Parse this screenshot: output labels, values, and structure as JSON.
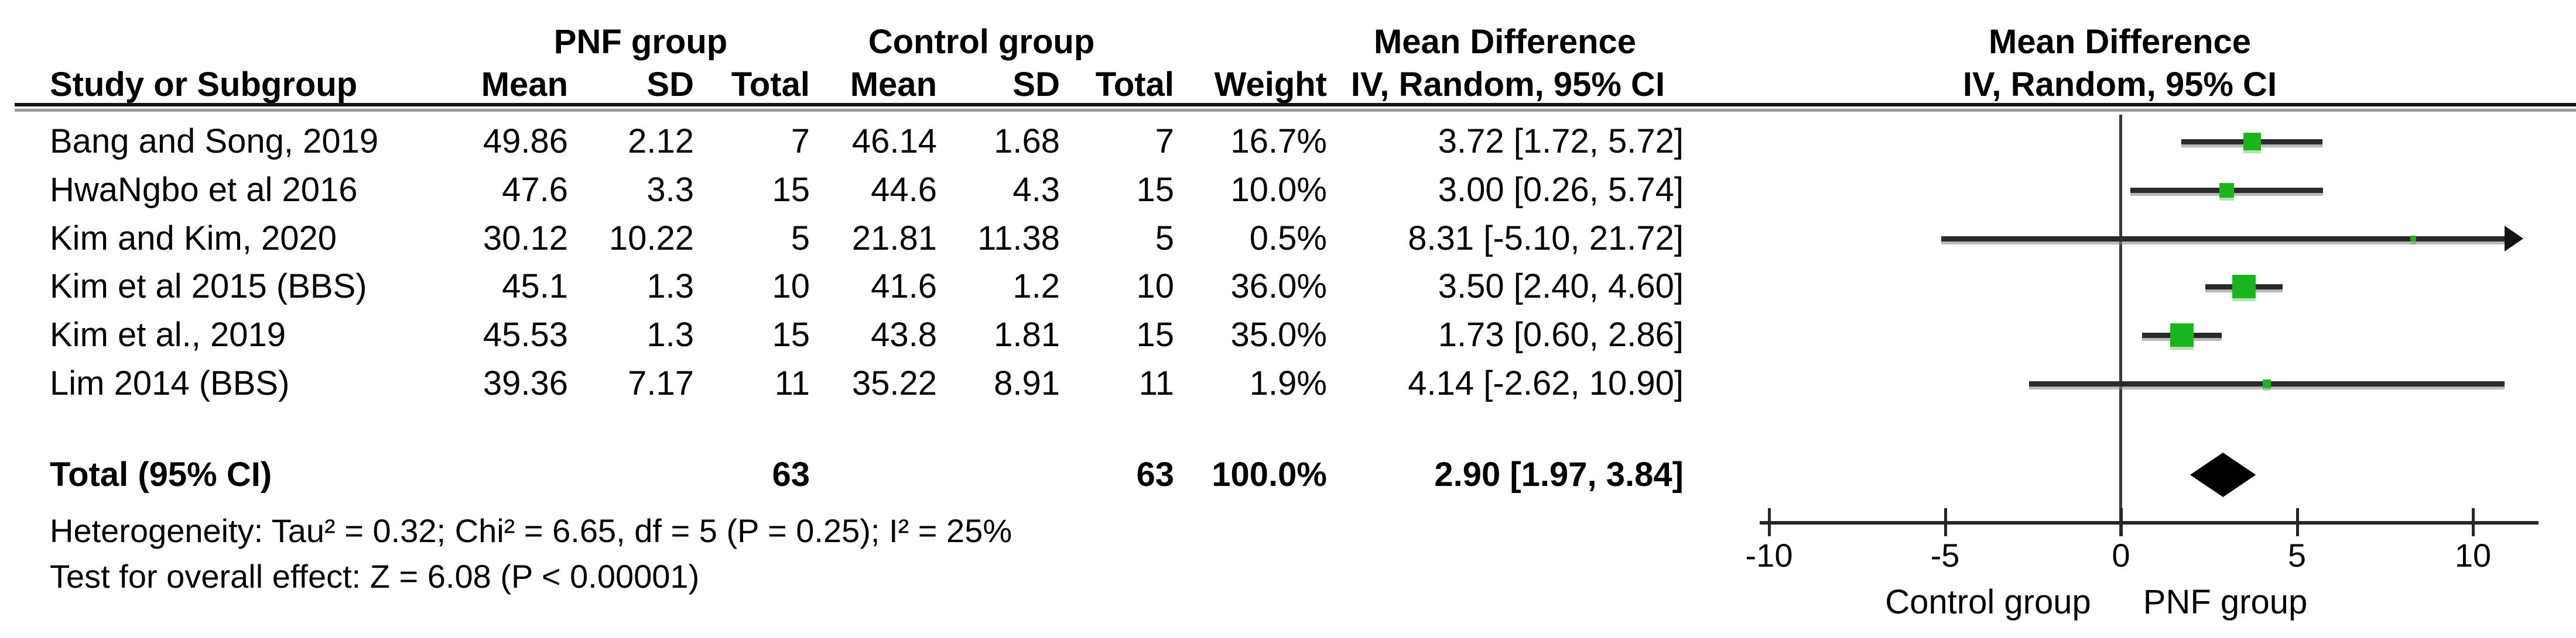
{
  "headers": {
    "group_pnf": "PNF group",
    "group_control": "Control group",
    "md_text_col": "Mean Difference",
    "md_plot_col": "Mean Difference",
    "study": "Study or Subgroup",
    "mean": "Mean",
    "sd": "SD",
    "total": "Total",
    "mean2": "Mean",
    "sd2": "SD",
    "total2": "Total",
    "weight": "Weight",
    "iv_text_col": "IV, Random, 95% CI",
    "iv_plot_col": "IV, Random, 95% CI"
  },
  "colors": {
    "marker_green": "#1CB41C",
    "diamond_black": "#000000",
    "line_dark": "#2A2A2A"
  },
  "chart_data": {
    "type": "forest",
    "effect_measure": "Mean Difference",
    "method": "IV, Random, 95% CI",
    "axis": {
      "min": -10,
      "max": 10,
      "ticks": [
        "-10",
        "-5",
        "0",
        "5",
        "10"
      ],
      "tick_values": [
        -10,
        -5,
        0,
        5,
        10
      ],
      "left_caption": "Control group",
      "right_caption": "PNF group"
    },
    "studies": [
      {
        "name": "Bang and Song, 2019",
        "pnf_mean": "49.86",
        "pnf_sd": "2.12",
        "pnf_total": "7",
        "ctrl_mean": "46.14",
        "ctrl_sd": "1.68",
        "ctrl_total": "7",
        "weight": "16.7%",
        "md": 3.72,
        "ci_low": 1.72,
        "ci_high": 5.72,
        "ci_label": "3.72 [1.72, 5.72]"
      },
      {
        "name": "HwaNgbo et al 2016",
        "pnf_mean": "47.6",
        "pnf_sd": "3.3",
        "pnf_total": "15",
        "ctrl_mean": "44.6",
        "ctrl_sd": "4.3",
        "ctrl_total": "15",
        "weight": "10.0%",
        "md": 3.0,
        "ci_low": 0.26,
        "ci_high": 5.74,
        "ci_label": "3.00 [0.26, 5.74]"
      },
      {
        "name": "Kim and Kim, 2020",
        "pnf_mean": "30.12",
        "pnf_sd": "10.22",
        "pnf_total": "5",
        "ctrl_mean": "21.81",
        "ctrl_sd": "11.38",
        "ctrl_total": "5",
        "weight": "0.5%",
        "md": 8.31,
        "ci_low": -5.1,
        "ci_high": 21.72,
        "ci_label": "8.31 [-5.10, 21.72]"
      },
      {
        "name": "Kim et al 2015 (BBS)",
        "pnf_mean": "45.1",
        "pnf_sd": "1.3",
        "pnf_total": "10",
        "ctrl_mean": "41.6",
        "ctrl_sd": "1.2",
        "ctrl_total": "10",
        "weight": "36.0%",
        "md": 3.5,
        "ci_low": 2.4,
        "ci_high": 4.6,
        "ci_label": "3.50 [2.40, 4.60]"
      },
      {
        "name": "Kim et al., 2019",
        "pnf_mean": "45.53",
        "pnf_sd": "1.3",
        "pnf_total": "15",
        "ctrl_mean": "43.8",
        "ctrl_sd": "1.81",
        "ctrl_total": "15",
        "weight": "35.0%",
        "md": 1.73,
        "ci_low": 0.6,
        "ci_high": 2.86,
        "ci_label": "1.73 [0.60, 2.86]"
      },
      {
        "name": "Lim 2014 (BBS)",
        "pnf_mean": "39.36",
        "pnf_sd": "7.17",
        "pnf_total": "11",
        "ctrl_mean": "35.22",
        "ctrl_sd": "8.91",
        "ctrl_total": "11",
        "weight": "1.9%",
        "md": 4.14,
        "ci_low": -2.62,
        "ci_high": 10.9,
        "ci_label": "4.14 [-2.62, 10.90]"
      }
    ],
    "total": {
      "label": "Total (95% CI)",
      "pnf_total": "63",
      "ctrl_total": "63",
      "weight": "100.0%",
      "md": 2.9,
      "ci_low": 1.97,
      "ci_high": 3.84,
      "ci_label": "2.90 [1.97, 3.84]"
    },
    "heterogeneity": "Heterogeneity: Tau² = 0.32; Chi² = 6.65, df = 5 (P = 0.25); I² = 25%",
    "overall_effect": "Test for overall effect: Z = 6.08 (P < 0.00001)"
  }
}
